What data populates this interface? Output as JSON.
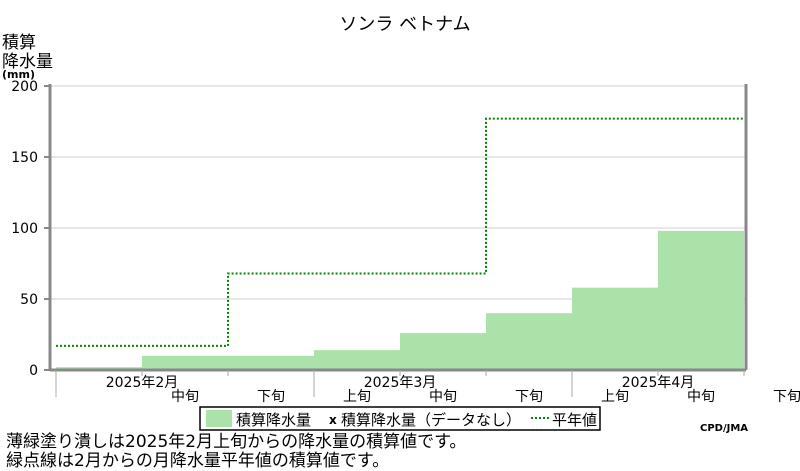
{
  "chart_data": {
    "type": "area",
    "title": "ソンラ ベトナム",
    "ylabel_lines": [
      "積算",
      "降水量",
      "(mm)"
    ],
    "ylim": [
      0,
      200
    ],
    "yticks": [
      0,
      50,
      100,
      150,
      200
    ],
    "periods": [
      "2025年2月上旬",
      "2025年2月中旬",
      "2025年2月下旬",
      "2025年3月上旬",
      "2025年3月中旬",
      "2025年3月下旬",
      "2025年4月上旬",
      "2025年4月中旬",
      "2025年4月下旬"
    ],
    "months": [
      "2025年2月",
      "2025年3月",
      "2025年4月"
    ],
    "dekad_labels": [
      "中旬",
      "下旬",
      "上旬",
      "中旬",
      "下旬",
      "上旬",
      "中旬",
      "下旬"
    ],
    "series": [
      {
        "name": "積算降水量",
        "style": "filled-step",
        "color": "#aae2aa",
        "values": [
          2,
          10,
          10,
          14,
          26,
          40,
          58,
          98
        ]
      },
      {
        "name": "積算降水量（データなし）",
        "style": "marker",
        "marker": "x",
        "values": []
      },
      {
        "name": "平年値",
        "style": "dotted-step",
        "color": "#008800",
        "values": [
          17,
          17,
          68,
          68,
          68,
          177,
          177,
          177
        ]
      }
    ],
    "legend": {
      "placement": "bottom-center",
      "items": [
        {
          "label": "積算降水量",
          "swatch": "fill",
          "color": "#aae2aa"
        },
        {
          "label": "積算降水量（データなし）",
          "swatch": "x"
        },
        {
          "label": "平年値",
          "swatch": "dotted",
          "color": "#008800"
        }
      ]
    },
    "grid": true
  },
  "credit": "CPD/JMA",
  "notes": [
    "薄緑塗り潰しは2025年2月上旬からの降水量の積算値です。",
    "緑点線は2月からの月降水量平年値の積算値です。"
  ]
}
